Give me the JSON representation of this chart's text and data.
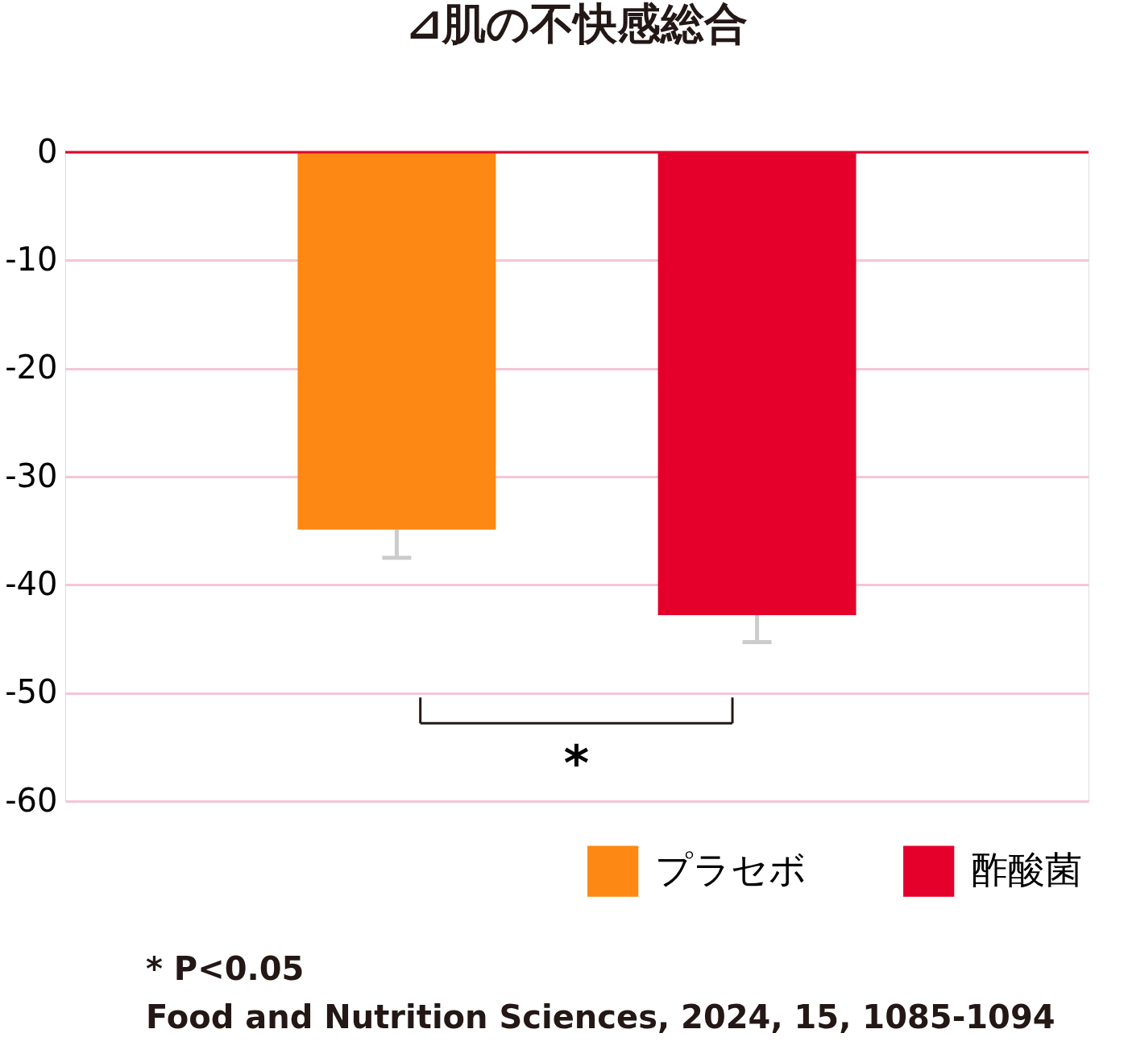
{
  "chart_data": {
    "type": "bar",
    "title": "⊿肌の不快感総合",
    "categories": [
      null,
      null
    ],
    "series": [
      {
        "name": "プラセボ",
        "color": "#fd8813",
        "values": [
          -34.9,
          null
        ],
        "errors": [
          [
            -37.5,
            -34.9
          ],
          null
        ]
      },
      {
        "name": "酢酸菌",
        "color": "#e4002b",
        "values": [
          null,
          -42.8
        ],
        "errors": [
          null,
          [
            -45.3,
            -42.8
          ]
        ]
      }
    ],
    "ylim": [
      -60,
      0
    ],
    "yticks": [
      0,
      -10,
      -20,
      -30,
      -40,
      -50,
      -60
    ],
    "grid": "y",
    "tick_labels": "y",
    "legend": "bottom",
    "ref_lines": [
      {
        "axis": "y",
        "value": 0,
        "color": "#e4002b"
      }
    ],
    "annotations": [
      "*",
      "* P<0.05",
      "Food and Nutrition Sciences, 2024, 15, 1085-1094"
    ]
  }
}
